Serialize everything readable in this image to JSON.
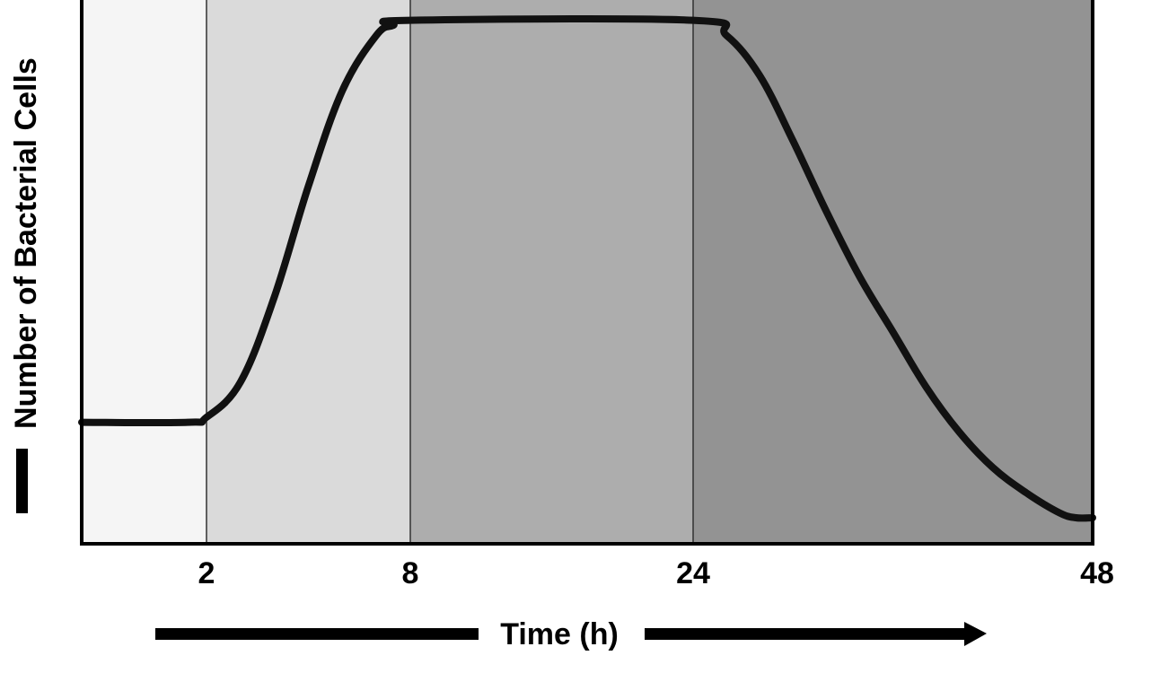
{
  "chart_data": {
    "type": "line",
    "title": "",
    "xlabel": "Time (h)",
    "ylabel": "Number of Bacterial Cells",
    "x_ticks": [
      "2",
      "8",
      "24",
      "48"
    ],
    "ylim": [
      0,
      100
    ],
    "grid": false,
    "legend": "none",
    "phases": [
      {
        "x_start": 0,
        "x_end": 2,
        "fill": "#f5f5f5"
      },
      {
        "x_start": 2,
        "x_end": 8,
        "fill": "#dadada"
      },
      {
        "x_start": 8,
        "x_end": 24,
        "fill": "#adadad"
      },
      {
        "x_start": 24,
        "x_end": 48,
        "fill": "#939393"
      }
    ],
    "series": [
      {
        "x": [
          0,
          1.7,
          2,
          3,
          4,
          5,
          6,
          7,
          7.5,
          8,
          24,
          26,
          28,
          30,
          32,
          34,
          36,
          38,
          40,
          42,
          44,
          46,
          47,
          48
        ],
        "y": [
          19,
          19,
          20,
          27,
          44,
          66,
          85,
          96,
          98,
          99,
          99,
          96,
          88,
          75,
          61,
          48,
          37,
          26,
          17,
          10,
          5,
          1,
          0,
          0
        ],
        "color": "#111111"
      }
    ]
  }
}
